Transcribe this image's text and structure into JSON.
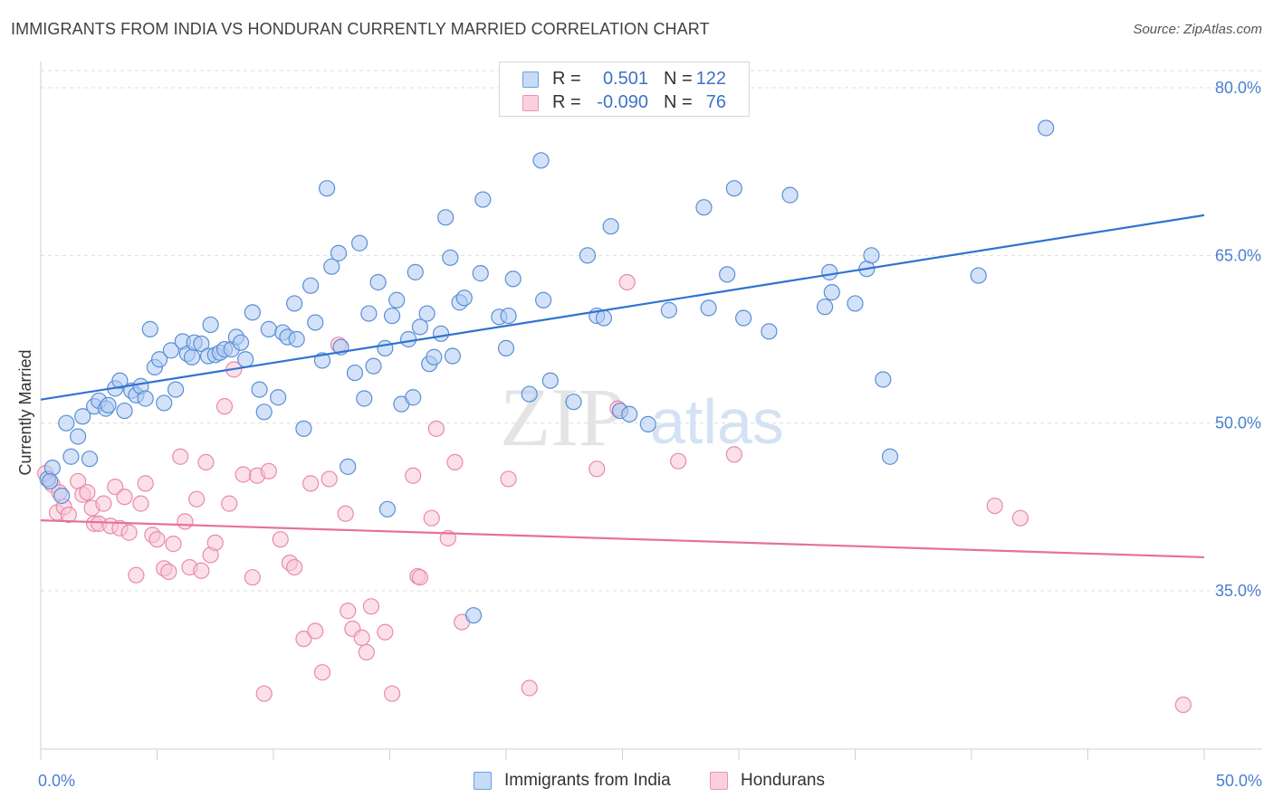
{
  "title": "IMMIGRANTS FROM INDIA VS HONDURAN CURRENTLY MARRIED CORRELATION CHART",
  "source": "Source: ZipAtlas.com",
  "watermark": {
    "zip": "ZIP",
    "atlas": "atlas"
  },
  "colors": {
    "blue_fill": "#aecbf2",
    "blue_stroke": "#5a8fd6",
    "blue_line": "#2f73d0",
    "pink_fill": "#f7c6d6",
    "pink_stroke": "#e98aab",
    "pink_line": "#e5719b",
    "tick_text": "#4a7fd0",
    "grid": "#dedede"
  },
  "legend": [
    {
      "r_label": "R =",
      "r_value": "0.501",
      "n_label": "N =",
      "n_value": "122"
    },
    {
      "r_label": "R =",
      "r_value": "-0.090",
      "n_label": "N =",
      "n_value": "76"
    }
  ],
  "chart_data": {
    "type": "scatter",
    "title": "IMMIGRANTS FROM INDIA VS HONDURAN CURRENTLY MARRIED CORRELATION CHART",
    "xlabel": "",
    "ylabel": "Currently Married",
    "xlim": [
      0,
      50
    ],
    "ylim": [
      22,
      82
    ],
    "x_tick_labels": [
      "0.0%",
      "50.0%"
    ],
    "y_ticks": [
      35,
      50,
      65,
      80
    ],
    "y_tick_labels": [
      "35.0%",
      "50.0%",
      "65.0%",
      "80.0%"
    ],
    "grid": "horizontal dashed",
    "legend_position": "bottom",
    "series": [
      {
        "name": "Immigrants from India",
        "r": 0.501,
        "n": 122,
        "trend": {
          "x": [
            0,
            50
          ],
          "y": [
            52.1,
            68.6
          ]
        },
        "points": [
          [
            0.3,
            45.0
          ],
          [
            0.5,
            46.0
          ],
          [
            0.4,
            44.8
          ],
          [
            0.9,
            43.5
          ],
          [
            1.1,
            50.0
          ],
          [
            1.3,
            47.0
          ],
          [
            1.6,
            48.8
          ],
          [
            1.8,
            50.6
          ],
          [
            2.1,
            46.8
          ],
          [
            2.3,
            51.5
          ],
          [
            2.5,
            52.0
          ],
          [
            2.8,
            51.3
          ],
          [
            2.9,
            51.6
          ],
          [
            3.2,
            53.1
          ],
          [
            3.4,
            53.8
          ],
          [
            3.6,
            51.1
          ],
          [
            3.9,
            52.9
          ],
          [
            4.1,
            52.5
          ],
          [
            4.3,
            53.3
          ],
          [
            4.5,
            52.2
          ],
          [
            4.7,
            58.4
          ],
          [
            4.9,
            55.0
          ],
          [
            5.1,
            55.7
          ],
          [
            5.3,
            51.8
          ],
          [
            5.6,
            56.5
          ],
          [
            5.8,
            53.0
          ],
          [
            6.1,
            57.3
          ],
          [
            6.3,
            56.2
          ],
          [
            6.5,
            55.9
          ],
          [
            6.6,
            57.2
          ],
          [
            6.9,
            57.1
          ],
          [
            7.2,
            56.0
          ],
          [
            7.3,
            58.8
          ],
          [
            7.5,
            56.1
          ],
          [
            7.7,
            56.3
          ],
          [
            7.9,
            56.6
          ],
          [
            8.2,
            56.6
          ],
          [
            8.4,
            57.7
          ],
          [
            8.6,
            57.2
          ],
          [
            8.8,
            55.7
          ],
          [
            9.1,
            59.9
          ],
          [
            9.4,
            53.0
          ],
          [
            9.6,
            51.0
          ],
          [
            9.8,
            58.4
          ],
          [
            10.2,
            52.3
          ],
          [
            10.4,
            58.1
          ],
          [
            10.6,
            57.7
          ],
          [
            10.9,
            60.7
          ],
          [
            11.0,
            57.5
          ],
          [
            11.3,
            49.5
          ],
          [
            11.6,
            62.3
          ],
          [
            11.8,
            59.0
          ],
          [
            12.1,
            55.6
          ],
          [
            12.3,
            71.0
          ],
          [
            12.5,
            64.0
          ],
          [
            12.8,
            65.2
          ],
          [
            12.9,
            56.8
          ],
          [
            13.2,
            46.1
          ],
          [
            13.5,
            54.5
          ],
          [
            13.7,
            66.1
          ],
          [
            13.9,
            52.2
          ],
          [
            14.1,
            59.8
          ],
          [
            14.3,
            55.1
          ],
          [
            14.5,
            62.6
          ],
          [
            14.8,
            56.7
          ],
          [
            14.9,
            42.3
          ],
          [
            15.1,
            59.6
          ],
          [
            15.3,
            61.0
          ],
          [
            15.5,
            51.7
          ],
          [
            15.8,
            57.5
          ],
          [
            16.0,
            52.3
          ],
          [
            16.1,
            63.5
          ],
          [
            16.3,
            58.6
          ],
          [
            16.6,
            59.8
          ],
          [
            16.7,
            55.3
          ],
          [
            16.9,
            55.9
          ],
          [
            17.2,
            58.0
          ],
          [
            17.4,
            68.4
          ],
          [
            17.6,
            64.8
          ],
          [
            17.7,
            56.0
          ],
          [
            18.0,
            60.8
          ],
          [
            18.2,
            61.2
          ],
          [
            18.6,
            32.8
          ],
          [
            18.9,
            63.4
          ],
          [
            19.0,
            70.0
          ],
          [
            19.7,
            59.5
          ],
          [
            20.0,
            56.7
          ],
          [
            20.1,
            59.6
          ],
          [
            20.3,
            62.9
          ],
          [
            21.0,
            52.6
          ],
          [
            21.5,
            73.5
          ],
          [
            21.6,
            61.0
          ],
          [
            21.9,
            53.8
          ],
          [
            22.9,
            51.9
          ],
          [
            23.5,
            65.0
          ],
          [
            23.9,
            59.6
          ],
          [
            24.2,
            59.4
          ],
          [
            24.5,
            67.6
          ],
          [
            24.9,
            51.1
          ],
          [
            25.3,
            50.8
          ],
          [
            26.1,
            49.9
          ],
          [
            27.0,
            60.1
          ],
          [
            28.5,
            69.3
          ],
          [
            28.7,
            60.3
          ],
          [
            29.5,
            63.3
          ],
          [
            29.8,
            71.0
          ],
          [
            30.2,
            59.4
          ],
          [
            31.3,
            58.2
          ],
          [
            32.2,
            70.4
          ],
          [
            33.7,
            60.4
          ],
          [
            33.9,
            63.5
          ],
          [
            34.0,
            61.7
          ],
          [
            35.0,
            60.7
          ],
          [
            35.5,
            63.8
          ],
          [
            35.7,
            65.0
          ],
          [
            36.2,
            53.9
          ],
          [
            36.5,
            47.0
          ],
          [
            40.3,
            63.2
          ],
          [
            43.2,
            76.4
          ]
        ]
      },
      {
        "name": "Hondurans",
        "r": -0.09,
        "n": 76,
        "trend": {
          "x": [
            0,
            50
          ],
          "y": [
            41.3,
            38.0
          ]
        },
        "points": [
          [
            0.2,
            45.5
          ],
          [
            0.5,
            44.5
          ],
          [
            0.7,
            42.0
          ],
          [
            0.8,
            43.8
          ],
          [
            1.0,
            42.5
          ],
          [
            1.2,
            41.8
          ],
          [
            1.6,
            44.8
          ],
          [
            1.8,
            43.6
          ],
          [
            2.0,
            43.8
          ],
          [
            2.2,
            42.4
          ],
          [
            2.3,
            41.0
          ],
          [
            2.5,
            41.0
          ],
          [
            2.7,
            42.8
          ],
          [
            3.0,
            40.8
          ],
          [
            3.2,
            44.3
          ],
          [
            3.4,
            40.6
          ],
          [
            3.6,
            43.4
          ],
          [
            3.8,
            40.2
          ],
          [
            4.1,
            36.4
          ],
          [
            4.3,
            42.8
          ],
          [
            4.5,
            44.6
          ],
          [
            4.8,
            40.0
          ],
          [
            5.0,
            39.6
          ],
          [
            5.3,
            37.0
          ],
          [
            5.5,
            36.7
          ],
          [
            5.7,
            39.2
          ],
          [
            6.0,
            47.0
          ],
          [
            6.2,
            41.2
          ],
          [
            6.4,
            37.1
          ],
          [
            6.7,
            43.2
          ],
          [
            6.9,
            36.8
          ],
          [
            7.1,
            46.5
          ],
          [
            7.3,
            38.2
          ],
          [
            7.5,
            39.3
          ],
          [
            7.9,
            51.5
          ],
          [
            8.1,
            42.8
          ],
          [
            8.3,
            54.8
          ],
          [
            8.7,
            45.4
          ],
          [
            9.1,
            36.2
          ],
          [
            9.3,
            45.3
          ],
          [
            9.6,
            25.8
          ],
          [
            9.8,
            45.7
          ],
          [
            10.3,
            39.6
          ],
          [
            10.7,
            37.5
          ],
          [
            10.9,
            37.1
          ],
          [
            11.3,
            30.7
          ],
          [
            11.6,
            44.6
          ],
          [
            11.8,
            31.4
          ],
          [
            12.1,
            27.7
          ],
          [
            12.4,
            45.0
          ],
          [
            12.8,
            57.0
          ],
          [
            13.1,
            41.9
          ],
          [
            13.2,
            33.2
          ],
          [
            13.4,
            31.6
          ],
          [
            13.8,
            30.8
          ],
          [
            14.0,
            29.5
          ],
          [
            14.2,
            33.6
          ],
          [
            14.8,
            31.3
          ],
          [
            15.1,
            25.8
          ],
          [
            16.0,
            45.3
          ],
          [
            16.2,
            36.3
          ],
          [
            16.3,
            36.2
          ],
          [
            16.8,
            41.5
          ],
          [
            17.0,
            49.5
          ],
          [
            17.5,
            39.7
          ],
          [
            17.8,
            46.5
          ],
          [
            18.1,
            32.2
          ],
          [
            20.1,
            45.0
          ],
          [
            21.0,
            26.3
          ],
          [
            23.9,
            45.9
          ],
          [
            24.8,
            51.3
          ],
          [
            25.2,
            62.6
          ],
          [
            27.4,
            46.6
          ],
          [
            29.8,
            47.2
          ],
          [
            41.0,
            42.6
          ],
          [
            42.1,
            41.5
          ],
          [
            49.1,
            24.8
          ]
        ]
      }
    ]
  },
  "bottom_legend": [
    {
      "label": "Immigrants from India"
    },
    {
      "label": "Hondurans"
    }
  ]
}
